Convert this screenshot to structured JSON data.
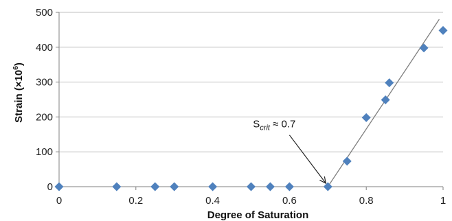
{
  "chart_data": {
    "type": "scatter",
    "title": "",
    "xlabel": "Degree of Saturation",
    "ylabel_main": "Strain (×10",
    "ylabel_sup": "6",
    "ylabel_close": ")",
    "xlim": [
      0,
      1
    ],
    "ylim": [
      0,
      500
    ],
    "xticks": [
      0,
      0.2,
      0.4,
      0.6,
      0.8,
      1
    ],
    "xtick_labels": [
      "0",
      "0.2",
      "0.4",
      "0.6",
      "0.8",
      "1"
    ],
    "yticks": [
      0,
      100,
      200,
      300,
      400,
      500
    ],
    "ytick_labels": [
      "0",
      "100",
      "200",
      "300",
      "400",
      "500"
    ],
    "grid": "horizontal",
    "legend": "none",
    "marker": "diamond",
    "marker_color": "#4f81bd",
    "points": [
      {
        "x": 0,
        "y": 0
      },
      {
        "x": 0.15,
        "y": 0
      },
      {
        "x": 0.25,
        "y": 0
      },
      {
        "x": 0.3,
        "y": 0
      },
      {
        "x": 0.4,
        "y": 0
      },
      {
        "x": 0.5,
        "y": 0
      },
      {
        "x": 0.55,
        "y": 0
      },
      {
        "x": 0.6,
        "y": 0
      },
      {
        "x": 0.7,
        "y": 0
      },
      {
        "x": 0.75,
        "y": 73
      },
      {
        "x": 0.8,
        "y": 198
      },
      {
        "x": 0.85,
        "y": 249
      },
      {
        "x": 0.86,
        "y": 298
      },
      {
        "x": 0.95,
        "y": 398
      },
      {
        "x": 1.0,
        "y": 448
      }
    ],
    "trendline": {
      "x": [
        0.7,
        0.99
      ],
      "y": [
        0,
        480
      ],
      "color": "#7f7f7f"
    },
    "annotation": {
      "text_main": "S",
      "text_sub": "crit",
      "text_rest": " ≈ 0.7",
      "points_to": {
        "x": 0.7,
        "y": 0
      }
    }
  }
}
